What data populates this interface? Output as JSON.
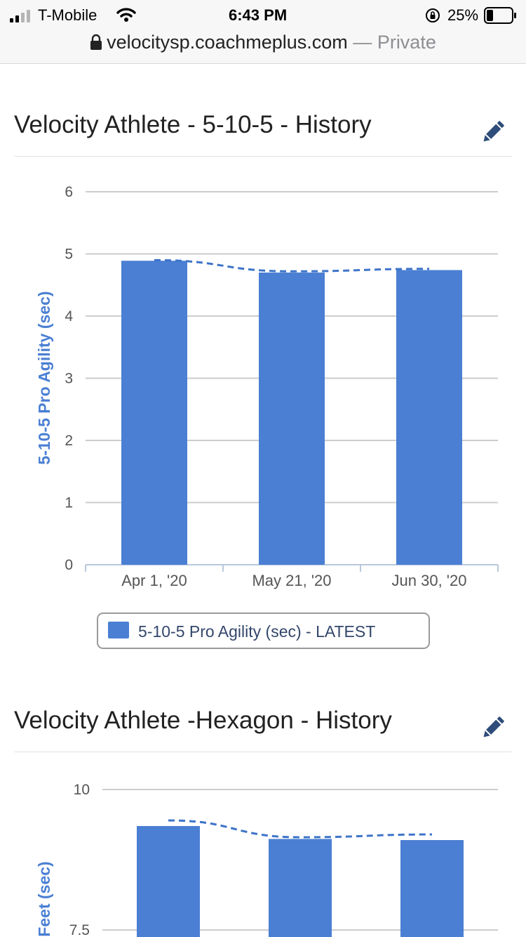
{
  "status_bar": {
    "carrier": "T-Mobile",
    "time": "6:43 PM",
    "battery": "25%",
    "icons": [
      "signal-icon",
      "wifi-icon",
      "orientation-lock-icon",
      "battery-icon"
    ]
  },
  "browser": {
    "url": "velocitysp.coachmeplus.com",
    "separator": "—",
    "mode": "Private"
  },
  "sections": [
    {
      "title": "Velocity Athlete - 5-10-5 - History",
      "edit_icon": "pencil-icon"
    },
    {
      "title": "Velocity Athlete -Hexagon - History",
      "edit_icon": "pencil-icon"
    }
  ],
  "chart_data": [
    {
      "type": "bar",
      "categories": [
        "Apr 1, '20",
        "May 21, '20",
        "Jun 30, '20"
      ],
      "series": [
        {
          "name": "5-10-5 Pro Agility (sec) - LATEST",
          "values": [
            4.89,
            4.7,
            4.74
          ]
        }
      ],
      "trend_line": [
        4.9,
        4.72,
        4.76
      ],
      "ylabel": "5-10-5 Pro Agility (sec)",
      "yticks": [
        "0",
        "1",
        "2",
        "3",
        "4",
        "5",
        "6"
      ],
      "ylim": [
        0,
        6
      ],
      "grid": true,
      "legend": "bottom-center",
      "colors": {
        "bar": "#4a7fd3",
        "line": "#3d74c9",
        "ylabel": "#4a7fd3",
        "grid": "#cccccc"
      }
    },
    {
      "type": "bar",
      "categories": [
        "",
        "",
        ""
      ],
      "series": [
        {
          "name": "",
          "values": [
            9.35,
            9.12,
            9.1
          ]
        }
      ],
      "trend_line": [
        9.45,
        9.15,
        9.2
      ],
      "ylabel": "Feet (sec)",
      "yticks": [
        "7.5",
        "10"
      ],
      "ylim": [
        5,
        10
      ],
      "grid": true,
      "colors": {
        "bar": "#4a7fd3",
        "line": "#3d74c9",
        "ylabel": "#4a7fd3",
        "grid": "#cccccc"
      }
    }
  ]
}
